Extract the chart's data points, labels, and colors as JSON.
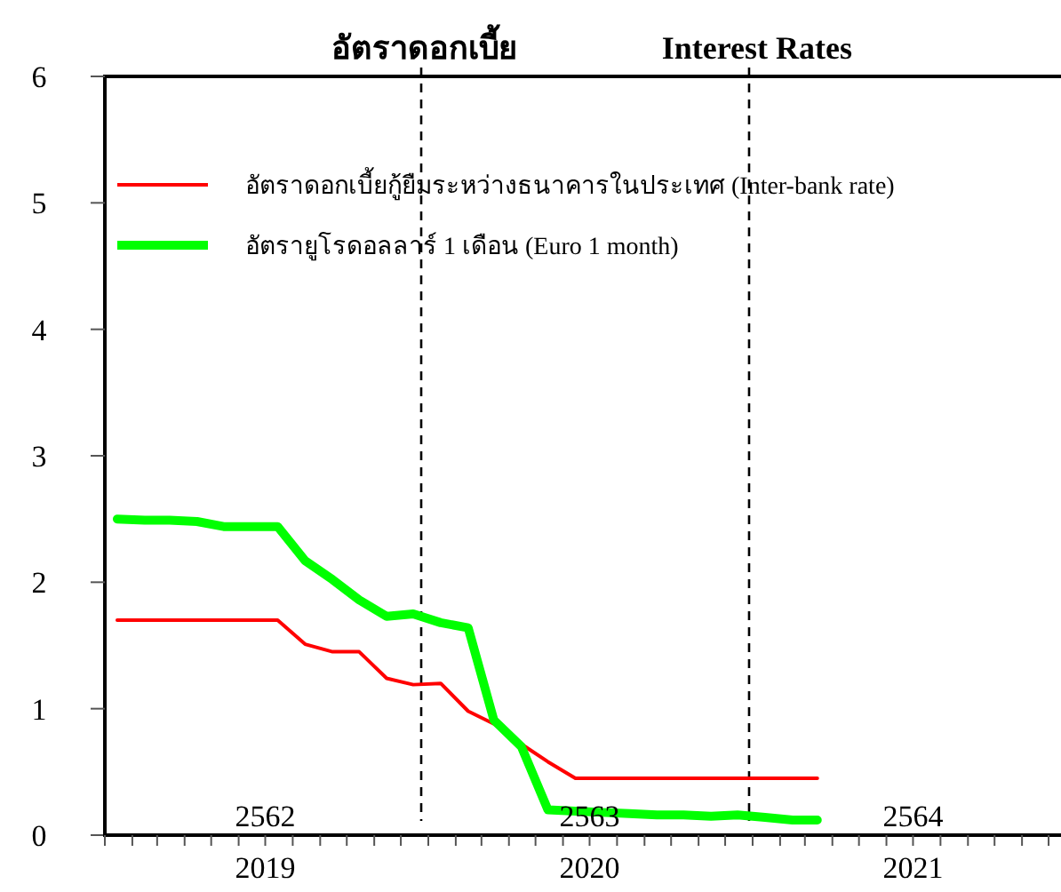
{
  "chart_data": {
    "type": "line",
    "title": "อัตราดอกเบี้ย",
    "subtitle": "Interest Rates",
    "x": [
      "2019-01-15",
      "2019-02-15",
      "2019-03-15",
      "2019-04-15",
      "2019-05-15",
      "2019-06-15",
      "2019-07-15",
      "2019-08-15",
      "2019-09-15",
      "2019-10-15",
      "2019-11-15",
      "2019-12-15",
      "2020-01-15",
      "2020-02-15",
      "2020-03-15",
      "2020-04-15",
      "2020-05-15",
      "2020-06-15",
      "2020-07-15",
      "2020-08-15",
      "2020-09-15",
      "2020-10-15",
      "2020-11-15",
      "2020-12-15",
      "2021-01-15",
      "2021-02-15",
      "2021-03-15"
    ],
    "series": [
      {
        "name": "อัตราดอกเบี้ยกู้ยืมระหว่างธนาคารในประเทศ (Inter-bank rate)",
        "color": "#ff0000",
        "values": [
          1.7,
          1.7,
          1.7,
          1.7,
          1.7,
          1.7,
          1.7,
          1.51,
          1.45,
          1.45,
          1.24,
          1.19,
          1.2,
          0.98,
          0.88,
          0.72,
          0.58,
          0.45,
          0.45,
          0.45,
          0.45,
          0.45,
          0.45,
          0.45,
          0.45,
          0.45,
          0.45
        ]
      },
      {
        "name": "อัตรายูโรดอลลาร์ 1 เดือน (Euro 1 month)",
        "color": "#00ff00",
        "values": [
          2.5,
          2.49,
          2.49,
          2.48,
          2.44,
          2.44,
          2.44,
          2.17,
          2.02,
          1.86,
          1.73,
          1.75,
          1.68,
          1.64,
          0.91,
          0.7,
          0.2,
          0.19,
          0.18,
          0.17,
          0.16,
          0.16,
          0.15,
          0.16,
          0.14,
          0.12,
          0.12
        ]
      }
    ],
    "xlim": [
      "2019-01-01",
      "2021-12-15"
    ],
    "xticks": [
      {
        "value": "2019-01-01",
        "label": null
      },
      {
        "value": "2019-02-01",
        "label": null
      },
      {
        "value": "2019-03-01",
        "label": null
      },
      {
        "value": "2019-04-01",
        "label": null
      },
      {
        "value": "2019-05-01",
        "label": null
      },
      {
        "value": "2019-06-01",
        "label": null
      },
      {
        "value": "2019-07-01",
        "label": "2019"
      },
      {
        "value": "2019-08-01",
        "label": null
      },
      {
        "value": "2019-09-01",
        "label": null
      },
      {
        "value": "2019-10-01",
        "label": null
      },
      {
        "value": "2019-11-01",
        "label": null
      },
      {
        "value": "2019-12-01",
        "label": null
      },
      {
        "value": "2020-01-01",
        "label": null
      },
      {
        "value": "2020-02-01",
        "label": null
      },
      {
        "value": "2020-03-01",
        "label": null
      },
      {
        "value": "2020-04-01",
        "label": null
      },
      {
        "value": "2020-05-01",
        "label": null
      },
      {
        "value": "2020-06-01",
        "label": null
      },
      {
        "value": "2020-07-01",
        "label": "2020"
      },
      {
        "value": "2020-08-01",
        "label": null
      },
      {
        "value": "2020-09-01",
        "label": null
      },
      {
        "value": "2020-10-01",
        "label": null
      },
      {
        "value": "2020-11-01",
        "label": null
      },
      {
        "value": "2020-12-01",
        "label": null
      },
      {
        "value": "2021-01-01",
        "label": null
      },
      {
        "value": "2021-02-01",
        "label": null
      },
      {
        "value": "2021-03-01",
        "label": null
      },
      {
        "value": "2021-04-01",
        "label": null
      },
      {
        "value": "2021-05-01",
        "label": null
      },
      {
        "value": "2021-06-01",
        "label": null
      },
      {
        "value": "2021-07-01",
        "label": "2021"
      },
      {
        "value": "2021-08-01",
        "label": null
      },
      {
        "value": "2021-09-01",
        "label": null
      },
      {
        "value": "2021-10-01",
        "label": null
      },
      {
        "value": "2021-11-01",
        "label": null
      },
      {
        "value": "2021-12-01",
        "label": null
      }
    ],
    "x2lim": [
      "2019-01-01",
      "2021-12-15"
    ],
    "x2ticks": [
      {
        "value": "2019-07-01",
        "label": "2562"
      },
      {
        "value": "2020-07-01",
        "label": "2563"
      },
      {
        "value": "2021-07-01",
        "label": "2564"
      }
    ],
    "ylim": [
      0,
      6
    ],
    "yticks": [
      0,
      1,
      2,
      3,
      4,
      5,
      6
    ],
    "ref_lines": [
      {
        "axis": "x",
        "value": "2019-12-24",
        "color": "#000000",
        "line_style": "dashed"
      },
      {
        "axis": "x",
        "value": "2020-12-28",
        "color": "#000000",
        "line_style": "dashed"
      }
    ],
    "legend": "top left",
    "line_style": "solid",
    "marker": "none"
  }
}
